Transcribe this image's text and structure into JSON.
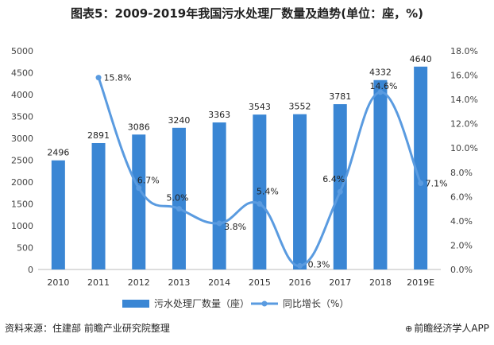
{
  "chart_data": {
    "type": "bar",
    "title": "图表5：2009-2019年我国污水处理厂数量及趋势(单位：座，%)",
    "categories": [
      "2010",
      "2011",
      "2012",
      "2013",
      "2014",
      "2015",
      "2016",
      "2017",
      "2018",
      "2019E"
    ],
    "series": [
      {
        "name": "污水处理厂数量（座）",
        "type": "bar",
        "axis": "left",
        "values": [
          2496,
          2891,
          3086,
          3240,
          3363,
          3543,
          3552,
          3781,
          4332,
          4640
        ],
        "labels": [
          "2496",
          "2891",
          "3086",
          "3240",
          "3363",
          "3543",
          "3552",
          "3781",
          "4332",
          "4640"
        ]
      },
      {
        "name": "同比增长（%）",
        "type": "line",
        "axis": "right",
        "values": [
          null,
          15.8,
          6.7,
          5.0,
          3.8,
          5.4,
          0.3,
          6.4,
          14.6,
          7.1
        ],
        "labels": [
          null,
          "15.8%",
          "6.7%",
          "5.0%",
          "3.8%",
          "5.4%",
          "0.3%",
          "6.4%",
          "14.6%",
          "7.1%"
        ]
      }
    ],
    "y_left": {
      "lim": [
        0,
        5000
      ],
      "ticks": [
        0,
        500,
        1000,
        1500,
        2000,
        2500,
        3000,
        3500,
        4000,
        4500,
        5000
      ],
      "tick_labels": [
        "0",
        "500",
        "1000",
        "1500",
        "2000",
        "2500",
        "3000",
        "3500",
        "4000",
        "4500",
        "5000"
      ]
    },
    "y_right": {
      "lim": [
        0,
        18
      ],
      "ticks": [
        0,
        2,
        4,
        6,
        8,
        10,
        12,
        14,
        16,
        18
      ],
      "tick_labels": [
        "0.0%",
        "2.0%",
        "4.0%",
        "6.0%",
        "8.0%",
        "10.0%",
        "12.0%",
        "14.0%",
        "16.0%",
        "18.0%"
      ]
    },
    "legend_position": "bottom",
    "colors": {
      "bar": "#3a86d4",
      "line": "#5a9be0"
    }
  },
  "source": {
    "left": "资料来源：住建部 前瞻产业研究院整理",
    "right_logo": "⊕",
    "right": "前瞻经济学人APP"
  }
}
